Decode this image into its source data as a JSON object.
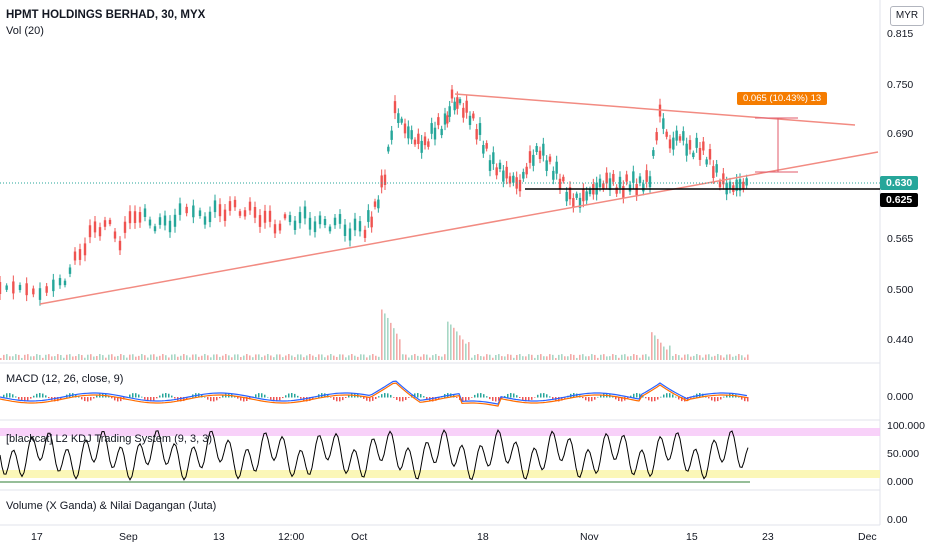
{
  "header": {
    "title": "HPMT HOLDINGS BERHAD, 30, MYX",
    "indicator_vol": "Vol (20)",
    "currency": "MYR"
  },
  "panes": {
    "macd_label": "MACD (12, 26, close, 9)",
    "kdj_label": "[blackcat] L2 KDJ Trading System (9, 3, 3)",
    "volume_label": "Volume (X Ganda) & Nilai Dagangan (Juta)"
  },
  "price_axis": {
    "ticks": [
      "0.815",
      "0.750",
      "0.690",
      "0.565",
      "0.500",
      "0.440"
    ],
    "last_price": "0.630",
    "level_price": "0.625"
  },
  "macd_axis": {
    "ticks": [
      "0.000"
    ]
  },
  "kdj_axis": {
    "ticks": [
      "100.000",
      "50.000",
      "0.000"
    ]
  },
  "vol_axis": {
    "ticks": [
      "0.00"
    ]
  },
  "time_axis": {
    "labels": [
      "17",
      "Sep",
      "13",
      "12:00",
      "Oct",
      "18",
      "Nov",
      "15",
      "23",
      "Dec"
    ]
  },
  "measure_tag": "0.065 (10.43%) 13",
  "colors": {
    "up": "#26a69a",
    "down": "#ef5350",
    "trendline": "#f28b82",
    "level_line": "#000000",
    "last_price_bg": "#26a69a",
    "measure_bg": "#f57c00",
    "macd_line": "#2962ff",
    "signal_line": "#ff6d00",
    "kdj_overbought": "#e040fb",
    "kdj_oversold": "#ffeb3b"
  }
}
